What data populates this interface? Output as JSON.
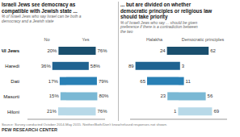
{
  "chart_data": [
    {
      "type": "bar",
      "orientation": "horizontal",
      "title": "Israeli Jews see democracy as\ncompatible with Jewish state ...",
      "subtitle": "% of Israeli Jews who say Israel can be both a\ndemocracy and a Jewish state",
      "categories": [
        "All Jews",
        "Haredi",
        "Dati",
        "Masorti",
        "Hiloni"
      ],
      "series": [
        {
          "name": "No",
          "values": [
            20,
            36,
            17,
            15,
            21
          ],
          "value_labels": [
            "20%",
            "36%",
            "17%",
            "15%",
            "21%"
          ]
        },
        {
          "name": "Yes",
          "values": [
            76,
            58,
            79,
            80,
            76
          ],
          "value_labels": [
            "76%",
            "58%",
            "79%",
            "80%",
            "76%"
          ]
        }
      ],
      "colors": [
        "#1a4f6e",
        "#1f6391",
        "#2980b5",
        "#7ab8d4",
        "#b8d9e8"
      ],
      "xlim": [
        0,
        100
      ],
      "data_labels": true,
      "tick_labels": "y"
    },
    {
      "type": "bar",
      "orientation": "horizontal",
      "title": "... but are divided on whether\ndemocratic principles or religious law\nshould take priority",
      "subtitle": "% of Israeli Jews who say ... should be given\npreference if there is a contradiction between\nthe two",
      "categories": [
        "All Jews",
        "Haredi",
        "Dati",
        "Masorti",
        "Hiloni"
      ],
      "series": [
        {
          "name": "Halakha",
          "values": [
            24,
            89,
            65,
            23,
            1
          ]
        },
        {
          "name": "Democratic principles",
          "values": [
            62,
            3,
            11,
            56,
            69
          ]
        }
      ],
      "colors": [
        "#1a4f6e",
        "#1f6391",
        "#2980b5",
        "#7ab8d4",
        "#b8d9e8"
      ],
      "xlim": [
        0,
        100
      ],
      "data_labels": true,
      "tick_labels": false,
      "annotations": [
        "Source: Survey conducted October 2014-May 2015. Neither/Both/Don't know/refused responses not shown.",
        "PEW RESEARCH CENTER"
      ]
    }
  ]
}
